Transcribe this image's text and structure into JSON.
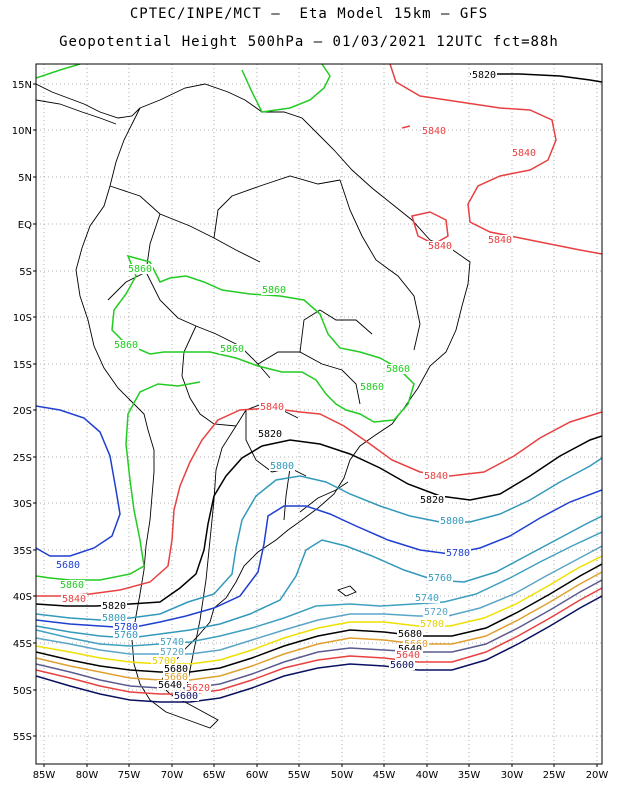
{
  "title_line1": "CPTEC/INPE/MCT –  Eta Model 15km – GFS",
  "title_line2": "Geopotential Height 500hPa – 01/03/2021 12UTC fct=88h",
  "lat_ticks": [
    "15N",
    "10N",
    "5N",
    "EQ",
    "5S",
    "10S",
    "15S",
    "20S",
    "25S",
    "30S",
    "35S",
    "40S",
    "45S",
    "50S",
    "55S"
  ],
  "lon_ticks": [
    "85W",
    "80W",
    "75W",
    "70W",
    "65W",
    "60W",
    "55W",
    "50W",
    "45W",
    "40W",
    "35W",
    "30W",
    "25W",
    "20W"
  ],
  "contour_colors": {
    "5860": "#22cc22",
    "5840": "#e84040",
    "5820": "#000000",
    "5800": "#3399bb",
    "5780": "#1f3fd0",
    "5760": "#3399bb",
    "5740": "#3fa0c0",
    "5720": "#5aa5c5",
    "5700": "#f0e000",
    "5680": "#000000",
    "5660": "#dfa030",
    "5640": "#e84040",
    "5600": "#0a1060"
  },
  "labels": [
    {
      "text": "5820",
      "color": "#000000"
    },
    {
      "text": "5840",
      "color": "#e84040"
    },
    {
      "text": "5840",
      "color": "#e84040"
    },
    {
      "text": "5840",
      "color": "#e84040"
    },
    {
      "text": "5840",
      "color": "#e84040"
    },
    {
      "text": "5860",
      "color": "#22cc22"
    },
    {
      "text": "5860",
      "color": "#22cc22"
    },
    {
      "text": "5860",
      "color": "#22cc22"
    },
    {
      "text": "5860",
      "color": "#22cc22"
    },
    {
      "text": "5860",
      "color": "#22cc22"
    },
    {
      "text": "5860",
      "color": "#22cc22"
    },
    {
      "text": "5840",
      "color": "#e84040"
    },
    {
      "text": "5820",
      "color": "#000000"
    },
    {
      "text": "5800",
      "color": "#3399bb"
    },
    {
      "text": "5840",
      "color": "#e84040"
    },
    {
      "text": "5820",
      "color": "#000000"
    },
    {
      "text": "5800",
      "color": "#3399bb"
    },
    {
      "text": "5780",
      "color": "#1f3fd0"
    },
    {
      "text": "5760",
      "color": "#3399bb"
    },
    {
      "text": "5740",
      "color": "#3fa0c0"
    },
    {
      "text": "5720",
      "color": "#5aa5c5"
    },
    {
      "text": "5700",
      "color": "#e8d000"
    },
    {
      "text": "5680",
      "color": "#000000"
    },
    {
      "text": "5660",
      "color": "#dfa030"
    },
    {
      "text": "5640",
      "color": "#000000"
    },
    {
      "text": "5640",
      "color": "#e84040"
    },
    {
      "text": "5600",
      "color": "#0a1060"
    },
    {
      "text": "5680",
      "color": "#1f3fd0"
    },
    {
      "text": "5860",
      "color": "#22cc22"
    },
    {
      "text": "5840",
      "color": "#e84040"
    },
    {
      "text": "5820",
      "color": "#000000"
    },
    {
      "text": "5800",
      "color": "#3399bb"
    },
    {
      "text": "5780",
      "color": "#1f3fd0"
    },
    {
      "text": "5760",
      "color": "#3399bb"
    },
    {
      "text": "5740",
      "color": "#3fa0c0"
    },
    {
      "text": "5720",
      "color": "#5aa5c5"
    },
    {
      "text": "5700",
      "color": "#e8d000"
    },
    {
      "text": "5680",
      "color": "#000000"
    },
    {
      "text": "5660",
      "color": "#dfa030"
    },
    {
      "text": "5640",
      "color": "#000000"
    },
    {
      "text": "5620",
      "color": "#e84040"
    },
    {
      "text": "5600",
      "color": "#0a1060"
    }
  ]
}
